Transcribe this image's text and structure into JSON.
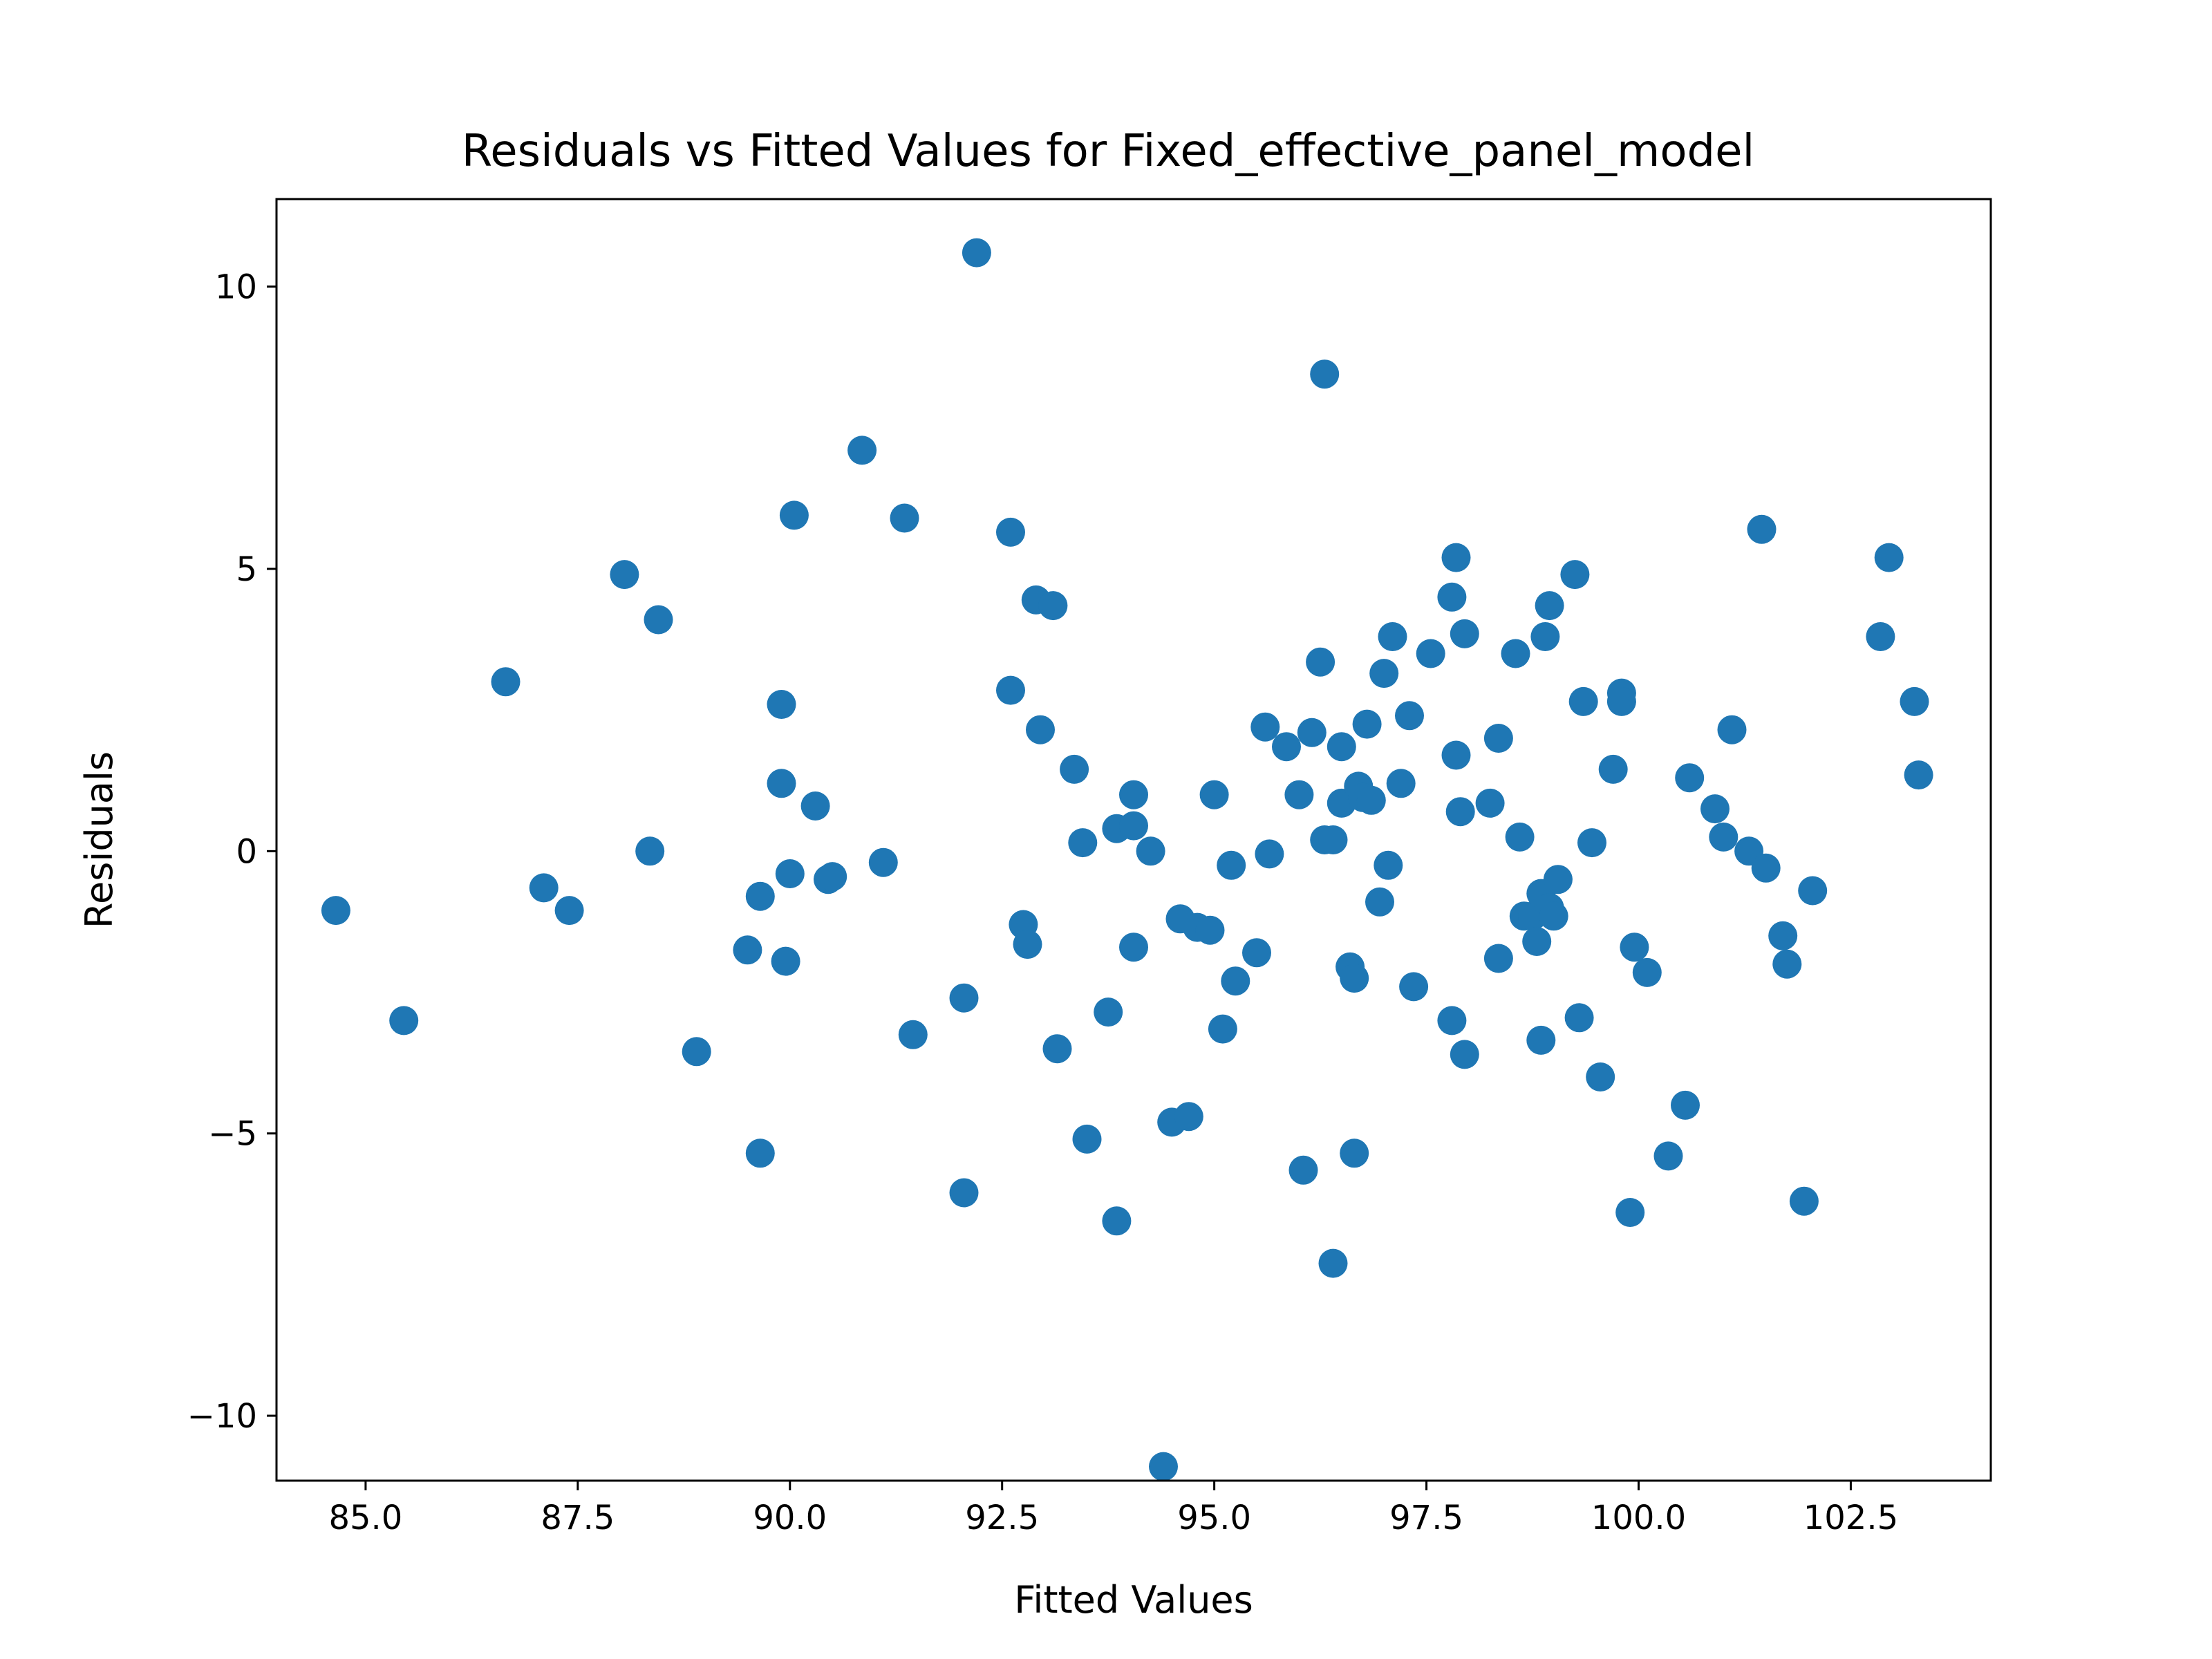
{
  "chart_data": {
    "type": "scatter",
    "title": "Residuals vs Fitted Values for Fixed_effective_panel_model",
    "xlabel": "Fitted Values",
    "ylabel": "Residuals",
    "xlim": [
      83.95,
      104.15
    ],
    "ylim": [
      -11.15,
      11.55
    ],
    "xticks": [
      85.0,
      87.5,
      90.0,
      92.5,
      95.0,
      97.5,
      100.0,
      102.5
    ],
    "xtick_labels": [
      "85.0",
      "87.5",
      "90.0",
      "92.5",
      "95.0",
      "97.5",
      "100.0",
      "102.5"
    ],
    "yticks": [
      10,
      5,
      0,
      -5,
      -10
    ],
    "ytick_labels": [
      "10",
      "5",
      "0",
      "−5",
      "−10"
    ],
    "grid": false,
    "marker_color": "#1f77b4",
    "points": [
      [
        84.65,
        -1.05
      ],
      [
        85.45,
        -3.0
      ],
      [
        86.65,
        3.0
      ],
      [
        87.1,
        -0.65
      ],
      [
        87.4,
        -1.05
      ],
      [
        88.05,
        4.9
      ],
      [
        88.35,
        0.0
      ],
      [
        88.45,
        4.1
      ],
      [
        88.9,
        -3.55
      ],
      [
        89.5,
        -1.75
      ],
      [
        89.65,
        -0.8
      ],
      [
        89.65,
        -5.35
      ],
      [
        89.9,
        1.2
      ],
      [
        89.9,
        2.6
      ],
      [
        89.95,
        -1.95
      ],
      [
        90.0,
        -0.4
      ],
      [
        90.05,
        5.95
      ],
      [
        90.3,
        0.8
      ],
      [
        90.45,
        -0.5
      ],
      [
        90.5,
        -0.45
      ],
      [
        90.85,
        7.1
      ],
      [
        91.1,
        -0.2
      ],
      [
        91.35,
        5.9
      ],
      [
        91.45,
        -3.25
      ],
      [
        92.05,
        -2.6
      ],
      [
        92.05,
        -6.05
      ],
      [
        92.2,
        10.6
      ],
      [
        92.6,
        5.65
      ],
      [
        92.6,
        2.85
      ],
      [
        92.75,
        -1.3
      ],
      [
        92.8,
        -1.65
      ],
      [
        92.9,
        4.45
      ],
      [
        92.95,
        2.15
      ],
      [
        93.1,
        4.35
      ],
      [
        93.15,
        -3.5
      ],
      [
        93.35,
        1.45
      ],
      [
        93.45,
        0.15
      ],
      [
        93.5,
        -5.1
      ],
      [
        93.75,
        -2.85
      ],
      [
        93.85,
        0.4
      ],
      [
        93.85,
        -6.55
      ],
      [
        94.05,
        1.0
      ],
      [
        94.05,
        0.45
      ],
      [
        94.05,
        -1.7
      ],
      [
        94.25,
        0.0
      ],
      [
        94.4,
        -10.9
      ],
      [
        94.5,
        -4.8
      ],
      [
        94.6,
        -1.2
      ],
      [
        94.7,
        -4.7
      ],
      [
        94.8,
        -1.35
      ],
      [
        94.95,
        -1.4
      ],
      [
        95.0,
        1.0
      ],
      [
        95.1,
        -3.15
      ],
      [
        95.2,
        -0.25
      ],
      [
        95.25,
        -2.3
      ],
      [
        95.5,
        -1.8
      ],
      [
        95.6,
        2.2
      ],
      [
        95.65,
        -0.05
      ],
      [
        95.85,
        1.85
      ],
      [
        96.0,
        1.0
      ],
      [
        96.05,
        -5.65
      ],
      [
        96.15,
        2.1
      ],
      [
        96.25,
        3.35
      ],
      [
        96.3,
        0.2
      ],
      [
        96.3,
        8.45
      ],
      [
        96.4,
        0.2
      ],
      [
        96.4,
        -7.3
      ],
      [
        96.5,
        1.85
      ],
      [
        96.5,
        0.85
      ],
      [
        96.6,
        -2.05
      ],
      [
        96.65,
        -2.25
      ],
      [
        96.65,
        -5.35
      ],
      [
        96.7,
        1.15
      ],
      [
        96.75,
        0.95
      ],
      [
        96.8,
        2.25
      ],
      [
        96.85,
        0.9
      ],
      [
        96.95,
        -0.9
      ],
      [
        97.0,
        3.15
      ],
      [
        97.05,
        -0.25
      ],
      [
        97.1,
        3.8
      ],
      [
        97.2,
        1.2
      ],
      [
        97.3,
        2.4
      ],
      [
        97.35,
        -2.4
      ],
      [
        97.55,
        3.5
      ],
      [
        97.8,
        -3.0
      ],
      [
        97.8,
        4.5
      ],
      [
        97.85,
        5.2
      ],
      [
        97.85,
        1.7
      ],
      [
        97.9,
        0.7
      ],
      [
        97.95,
        3.85
      ],
      [
        97.95,
        -3.6
      ],
      [
        98.25,
        0.85
      ],
      [
        98.35,
        2.0
      ],
      [
        98.35,
        -1.9
      ],
      [
        98.55,
        3.5
      ],
      [
        98.6,
        0.25
      ],
      [
        98.65,
        -1.15
      ],
      [
        98.75,
        -1.15
      ],
      [
        98.8,
        -1.6
      ],
      [
        98.85,
        -3.35
      ],
      [
        98.85,
        -0.75
      ],
      [
        98.9,
        3.8
      ],
      [
        98.95,
        4.35
      ],
      [
        98.95,
        -1.0
      ],
      [
        99.0,
        -1.15
      ],
      [
        99.05,
        -0.5
      ],
      [
        99.25,
        4.9
      ],
      [
        99.3,
        -2.95
      ],
      [
        99.35,
        2.65
      ],
      [
        99.45,
        0.15
      ],
      [
        99.55,
        -4.0
      ],
      [
        99.7,
        1.45
      ],
      [
        99.8,
        2.8
      ],
      [
        99.8,
        2.65
      ],
      [
        99.9,
        -6.4
      ],
      [
        99.95,
        -1.7
      ],
      [
        100.1,
        -2.15
      ],
      [
        100.35,
        -5.4
      ],
      [
        100.55,
        -4.5
      ],
      [
        100.6,
        1.3
      ],
      [
        100.9,
        0.75
      ],
      [
        101.0,
        0.25
      ],
      [
        101.1,
        2.15
      ],
      [
        101.3,
        0.0
      ],
      [
        101.45,
        5.7
      ],
      [
        101.5,
        -0.3
      ],
      [
        101.7,
        -1.5
      ],
      [
        101.75,
        -2.0
      ],
      [
        101.95,
        -6.2
      ],
      [
        102.05,
        -0.7
      ],
      [
        102.85,
        3.8
      ],
      [
        102.95,
        5.2
      ],
      [
        103.25,
        2.65
      ],
      [
        103.3,
        1.35
      ]
    ]
  }
}
